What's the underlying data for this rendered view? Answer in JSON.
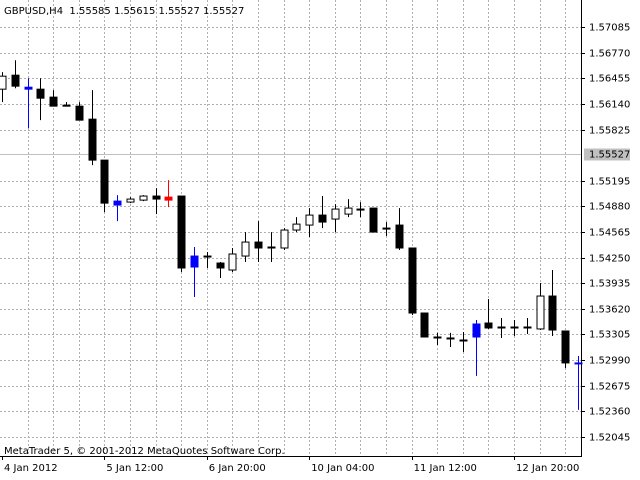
{
  "chart_data": {
    "type": "candlestick",
    "title": "GBPUSD,H4  1.55585 1.55615 1.55527 1.55527",
    "footer": "MetaTrader 5, © 2001-2012 MetaQuotes Software Corp.",
    "categories": [
      "4 Jan 2012",
      null,
      null,
      null,
      null,
      null,
      null,
      null,
      "5 Jan 12:00",
      null,
      null,
      null,
      null,
      null,
      null,
      null,
      "6 Jan 20:00",
      null,
      null,
      null,
      null,
      null,
      null,
      null,
      "10 Jan 04:00",
      null,
      null,
      null,
      null,
      null,
      null,
      null,
      "11 Jan 12:00",
      null,
      null,
      null,
      null,
      null,
      null,
      null,
      "12 Jan 20:00",
      null,
      null,
      null,
      null,
      null
    ],
    "open": [
      1.56323,
      1.56495,
      1.56347,
      1.56323,
      1.56225,
      1.56126,
      1.56114,
      1.55954,
      1.5545,
      1.54946,
      1.54934,
      1.54958,
      1.55008,
      1.54995,
      1.55008,
      1.5427,
      1.5427,
      1.54184,
      1.54098,
      1.5427,
      1.54442,
      1.54381,
      1.54369,
      1.5459,
      1.54651,
      1.54774,
      1.54725,
      1.54786,
      1.54848,
      1.5486,
      1.54614,
      1.54651,
      1.54369,
      1.53569,
      1.53274,
      1.53262,
      1.53237,
      1.53434,
      1.53446,
      1.53397,
      1.53397,
      1.53397,
      1.53373,
      1.53778,
      1.53348,
      1.52955
    ],
    "high": [
      1.56532,
      1.56679,
      1.56458,
      1.56458,
      1.56311,
      1.56163,
      1.56163,
      1.56311,
      1.5545,
      1.5502,
      1.54995,
      1.5502,
      1.55106,
      1.55204,
      1.55008,
      1.54381,
      1.54319,
      1.54196,
      1.54369,
      1.54565,
      1.547,
      1.54565,
      1.54614,
      1.54749,
      1.5486,
      1.55008,
      1.54909,
      1.54971,
      1.54934,
      1.5486,
      1.54688,
      1.5486,
      1.54369,
      1.53569,
      1.53324,
      1.53324,
      1.53336,
      1.53483,
      1.53741,
      1.53508,
      1.53483,
      1.53508,
      1.53938,
      1.54098,
      1.53348,
      1.53041
    ],
    "low": [
      1.56163,
      1.56335,
      1.55843,
      1.55942,
      1.56114,
      1.56114,
      1.55942,
      1.55389,
      1.54811,
      1.547,
      1.54921,
      1.54946,
      1.54786,
      1.54872,
      1.54073,
      1.53766,
      1.54123,
      1.54,
      1.54073,
      1.54196,
      1.54196,
      1.54196,
      1.54344,
      1.54565,
      1.54504,
      1.54614,
      1.54565,
      1.54749,
      1.54749,
      1.54565,
      1.54516,
      1.54344,
      1.53545,
      1.53274,
      1.53176,
      1.53151,
      1.5309,
      1.52795,
      1.53373,
      1.53262,
      1.53287,
      1.53311,
      1.5336,
      1.53287,
      1.52893,
      1.52377
    ],
    "close": [
      1.56483,
      1.5636,
      1.56323,
      1.56212,
      1.56114,
      1.56126,
      1.55942,
      1.5545,
      1.54921,
      1.54897,
      1.54971,
      1.55008,
      1.54971,
      1.54958,
      1.54123,
      1.54135,
      1.5427,
      1.54123,
      1.54295,
      1.54442,
      1.54369,
      1.54381,
      1.5459,
      1.54663,
      1.54774,
      1.54688,
      1.54848,
      1.5486,
      1.54848,
      1.54565,
      1.54614,
      1.54369,
      1.53569,
      1.53274,
      1.53274,
      1.53262,
      1.53237,
      1.53274,
      1.53385,
      1.53397,
      1.53397,
      1.53397,
      1.53778,
      1.5336,
      1.52955,
      1.52955
    ],
    "colors": [
      "#000000",
      "#000000",
      "#0000ff",
      "#000000",
      "#000000",
      "#000000",
      "#000000",
      "#000000",
      "#000000",
      "#0000ff",
      "#000000",
      "#000000",
      "#000000",
      "#ff0000",
      "#000000",
      "#0000ff",
      "#000000",
      "#000000",
      "#000000",
      "#000000",
      "#000000",
      "#000000",
      "#000000",
      "#000000",
      "#000000",
      "#000000",
      "#000000",
      "#000000",
      "#000000",
      "#000000",
      "#000000",
      "#000000",
      "#000000",
      "#000000",
      "#000000",
      "#000000",
      "#000000",
      "#0000ff",
      "#000000",
      "#000000",
      "#000000",
      "#000000",
      "#000000",
      "#000000",
      "#000000",
      "#0000ff"
    ],
    "price_line": 1.55527,
    "ylim": [
      1.5181,
      1.5742
    ],
    "yticks": [
      1.57085,
      {
        "value": 1.5677,
        "label": "1.56770"
      },
      1.56455,
      {
        "value": 1.5614,
        "label": "1.56140"
      },
      1.55825,
      1.55195,
      {
        "value": 1.5488,
        "label": "1.54880"
      },
      1.54565,
      {
        "value": 1.5425,
        "label": "1.54250"
      },
      1.53935,
      {
        "value": 1.5362,
        "label": "1.53620"
      },
      1.53305,
      {
        "value": 1.5299,
        "label": "1.52990"
      },
      1.52675,
      {
        "value": 1.5236,
        "label": "1.52360"
      },
      1.52045
    ],
    "grid": true
  }
}
